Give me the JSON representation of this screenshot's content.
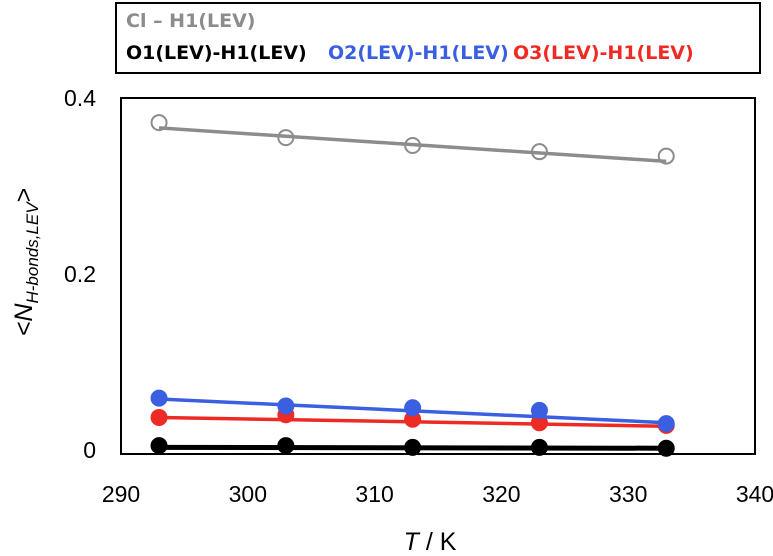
{
  "chart_data": {
    "type": "scatter",
    "xlabel_var": "T",
    "xlabel_unit": " / K",
    "ylabel_main": "<N",
    "ylabel_sub": "H-bonds,LEV",
    "ylabel_end": ">",
    "xlim": [
      290,
      340
    ],
    "ylim": [
      0,
      0.4
    ],
    "x_ticks": [
      "290",
      "300",
      "310",
      "320",
      "330",
      "340"
    ],
    "y_ticks": [
      "0",
      "0.2",
      "0.4"
    ],
    "grid": false,
    "legend_position": "top",
    "series": [
      {
        "name": "Cl – H1(LEV)",
        "color": "#8c8c8c",
        "marker": "open-circle",
        "x": [
          293,
          303,
          313,
          323,
          333
        ],
        "y": [
          0.372,
          0.355,
          0.346,
          0.339,
          0.334
        ],
        "fit": {
          "x": [
            293,
            333
          ],
          "y": [
            0.366,
            0.328
          ]
        }
      },
      {
        "name": "O1(LEV)-H1(LEV)",
        "color": "#000000",
        "marker": "filled-circle",
        "x": [
          293,
          303,
          313,
          323,
          333
        ],
        "y": [
          0.005,
          0.005,
          0.003,
          0.003,
          0.002
        ],
        "fit": {
          "x": [
            293,
            333
          ],
          "y": [
            0.003,
            0.002
          ]
        }
      },
      {
        "name": "O2(LEV)-H1(LEV)",
        "color": "#3a5fe0",
        "marker": "filled-circle",
        "x": [
          293,
          303,
          313,
          323,
          333
        ],
        "y": [
          0.059,
          0.05,
          0.048,
          0.045,
          0.03
        ],
        "fit": {
          "x": [
            293,
            333
          ],
          "y": [
            0.058,
            0.031
          ]
        }
      },
      {
        "name": "O3(LEV)-H1(LEV)",
        "color": "#ee2a24",
        "marker": "filled-circle",
        "x": [
          293,
          303,
          313,
          323,
          333
        ],
        "y": [
          0.037,
          0.04,
          0.035,
          0.031,
          0.028
        ],
        "fit": {
          "x": [
            293,
            333
          ],
          "y": [
            0.037,
            0.027
          ]
        }
      }
    ]
  }
}
